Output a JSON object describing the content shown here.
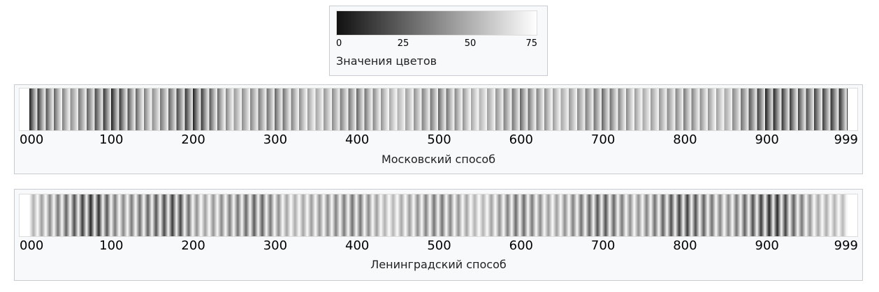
{
  "legend": {
    "ticks": [
      0,
      25,
      50,
      75
    ],
    "caption": "Значения цветов"
  },
  "strips": [
    {
      "tick_labels": [
        "000",
        "100",
        "200",
        "300",
        "400",
        "500",
        "600",
        "700",
        "800",
        "900",
        "999"
      ],
      "caption": "Московский способ"
    },
    {
      "tick_labels": [
        "000",
        "100",
        "200",
        "300",
        "400",
        "500",
        "600",
        "700",
        "800",
        "900",
        "999"
      ],
      "caption": "Ленинградский способ"
    }
  ]
}
